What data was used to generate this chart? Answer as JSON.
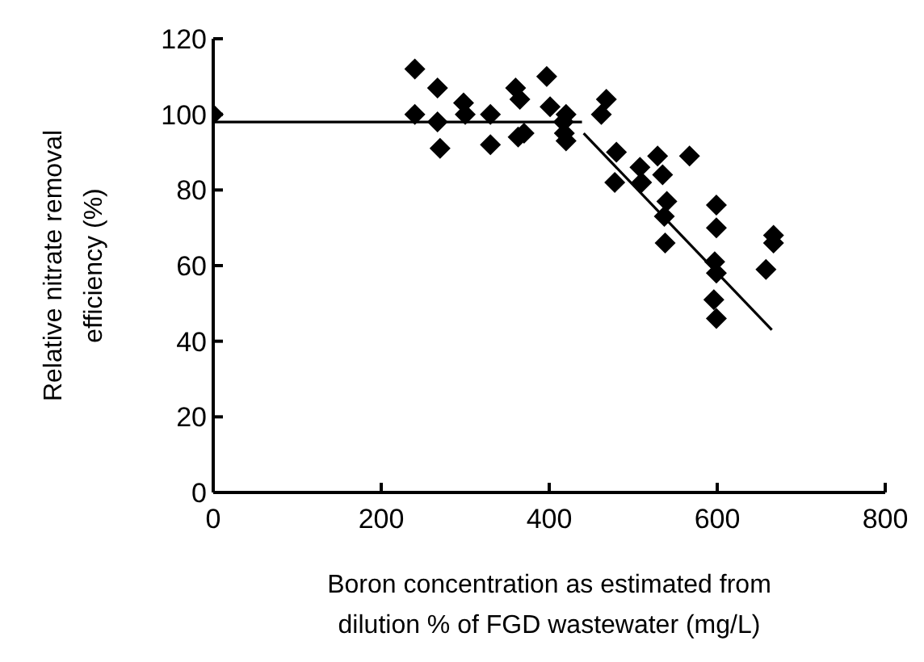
{
  "chart_data": {
    "type": "scatter",
    "xlabel": "Boron concentration as estimated from dilution % of FGD wastewater (mg/L)",
    "ylabel": "Relative nitrate removal efficiency (%)",
    "xlim": [
      0,
      800
    ],
    "xticks": [
      0,
      200,
      400,
      600,
      800
    ],
    "ylim": [
      0,
      120
    ],
    "yticks": [
      0,
      20,
      40,
      60,
      80,
      100,
      120
    ],
    "grid": false,
    "legend": false,
    "series": [
      {
        "color": "#000000",
        "marker": "diamond",
        "x": [
          0,
          240,
          267,
          240,
          267,
          270,
          298,
          300,
          330,
          330,
          360,
          365,
          363,
          370,
          397,
          401,
          420,
          417,
          418,
          420,
          468,
          462,
          480,
          478,
          508,
          510,
          529,
          535,
          567,
          540,
          537,
          538,
          599,
          599,
          597,
          599,
          596,
          599,
          667,
          667,
          658
        ],
        "values": [
          100,
          112,
          107,
          100,
          98,
          91,
          103,
          100,
          100,
          92,
          107,
          104,
          94,
          95,
          110,
          102,
          100,
          98,
          95,
          93,
          104,
          100,
          90,
          82,
          86,
          82,
          89,
          84,
          89,
          77,
          73,
          66,
          76,
          70,
          61,
          58,
          51,
          46,
          68,
          66,
          59
        ]
      },
      {
        "type": "line",
        "color": "#000000",
        "marker": "none",
        "line_style": "solid",
        "x": [
          0,
          439
        ],
        "values": [
          98,
          98
        ]
      },
      {
        "type": "line",
        "color": "#000000",
        "marker": "none",
        "line_style": "solid",
        "x": [
          441,
          665
        ],
        "values": [
          95,
          43
        ]
      }
    ]
  }
}
